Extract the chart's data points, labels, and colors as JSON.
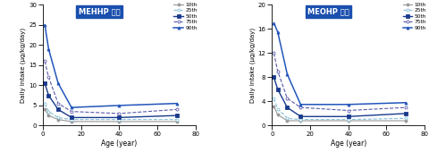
{
  "ages": [
    1,
    3,
    8,
    15,
    40,
    70
  ],
  "mehhp": {
    "p10": [
      4.0,
      2.5,
      1.5,
      1.0,
      1.0,
      1.0
    ],
    "p25": [
      5.5,
      3.5,
      2.0,
      1.5,
      1.5,
      1.5
    ],
    "p50": [
      10.5,
      7.5,
      4.0,
      2.0,
      2.0,
      2.5
    ],
    "p75": [
      16.0,
      12.0,
      5.5,
      3.5,
      3.0,
      4.0
    ],
    "p90": [
      25.0,
      19.0,
      10.5,
      4.5,
      5.0,
      5.5
    ]
  },
  "meohp": {
    "p10": [
      3.2,
      1.8,
      0.8,
      0.8,
      0.8,
      0.8
    ],
    "p25": [
      4.5,
      2.8,
      1.2,
      1.0,
      1.0,
      1.2
    ],
    "p50": [
      8.0,
      6.0,
      3.0,
      1.5,
      1.5,
      2.0
    ],
    "p75": [
      12.0,
      9.0,
      4.5,
      3.0,
      2.5,
      3.0
    ],
    "p90": [
      17.0,
      15.5,
      8.5,
      3.5,
      3.5,
      3.8
    ]
  },
  "title1": "MEHHP 기준",
  "title2": "MEOHP 기준",
  "xlabel": "Age (year)",
  "ylabel": "Daily intake (μg/kg/day)",
  "ylim1": [
    0,
    30
  ],
  "ylim2": [
    0,
    20
  ],
  "yticks1": [
    0,
    5,
    10,
    15,
    20,
    25,
    30
  ],
  "yticks2": [
    0,
    4,
    8,
    12,
    16,
    20
  ],
  "xticks": [
    0,
    20,
    40,
    60,
    80
  ],
  "xlim": [
    0,
    80
  ],
  "legend_labels": [
    "10th",
    "25th",
    "50th",
    "75th",
    "90th"
  ],
  "line_styles": [
    "-",
    "--",
    "-",
    "--",
    "-"
  ],
  "markers": [
    "o",
    "o",
    "s",
    "o",
    "^"
  ],
  "colors": [
    "#999999",
    "#88c0d8",
    "#1a3a8c",
    "#5a5aaa",
    "#2255bb"
  ],
  "mfc": [
    "#999999",
    "white",
    "#1a3a8c",
    "white",
    "#2255bb"
  ],
  "linewidths": [
    0.8,
    0.8,
    1.0,
    0.8,
    1.1
  ],
  "title_bg": "#1a4fad",
  "title_fg": "#ffffff"
}
